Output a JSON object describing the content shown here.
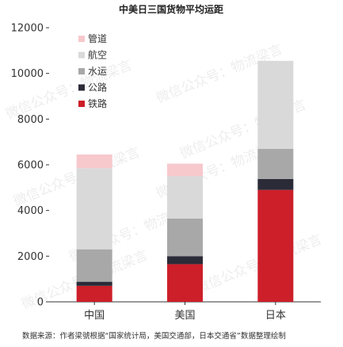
{
  "chart_data": {
    "type": "bar",
    "stacked": true,
    "title": "中美日三国货物平均运距",
    "categories": [
      "中国",
      "美国",
      "日本"
    ],
    "series": [
      {
        "name": "铁路",
        "color": "#cc1f29",
        "values": [
          700,
          1650,
          4900
        ]
      },
      {
        "name": "公路",
        "color": "#2b2b38",
        "values": [
          180,
          350,
          480
        ]
      },
      {
        "name": "水运",
        "color": "#a8a8a8",
        "values": [
          1420,
          1650,
          1320
        ]
      },
      {
        "name": "航空",
        "color": "#d9d9d9",
        "values": [
          3550,
          1850,
          3850
        ]
      },
      {
        "name": "管道",
        "color": "#f7c8cc",
        "values": [
          600,
          550,
          0
        ]
      }
    ],
    "legend_order": [
      "管道",
      "航空",
      "水运",
      "公路",
      "铁路"
    ],
    "ylim": [
      0,
      12000
    ],
    "yticks": [
      0,
      2000,
      4000,
      6000,
      8000,
      10000,
      12000
    ],
    "grid": false,
    "legend_position": "top-left"
  },
  "source_note": "数据来源：作者梁號根据“国家统计局，美国交通部，日本交通省”数据整理绘制",
  "watermark": "微信公众号：物流梁言"
}
